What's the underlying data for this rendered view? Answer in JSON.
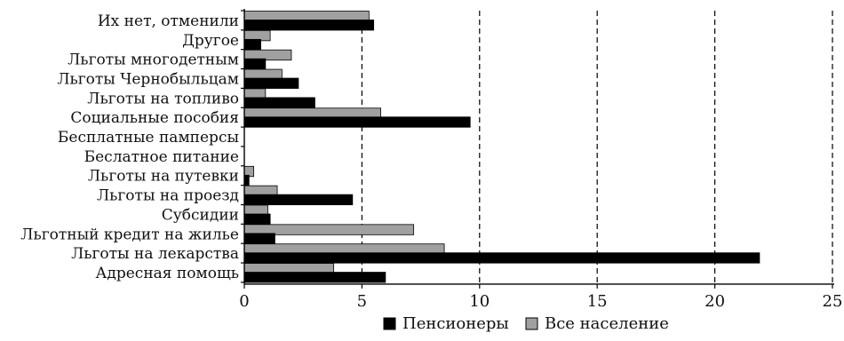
{
  "chart_data": {
    "type": "bar",
    "orientation": "horizontal",
    "categories": [
      "Их нет, отменили",
      "Другое",
      "Льготы многодетным",
      "Льготы Чернобыльцам",
      "Льготы на топливо",
      "Социальные пособия",
      "Бесплатные памперсы",
      "Беслатное питание",
      "Льготы на путевки",
      "Льготы на проезд",
      "Субсидии",
      "Льготный кредит на жилье",
      "Льготы на лекарства",
      "Адресная помощь"
    ],
    "series": [
      {
        "name": "Все население",
        "color": "#a0a0a0",
        "values": [
          5.3,
          1.1,
          2.0,
          1.6,
          0.9,
          5.8,
          0,
          0,
          0.4,
          1.4,
          1.0,
          7.2,
          8.5,
          3.8
        ]
      },
      {
        "name": "Пенсионеры",
        "color": "#000000",
        "values": [
          5.5,
          0.7,
          0.9,
          2.3,
          3.0,
          9.6,
          0,
          0,
          0.2,
          4.6,
          1.1,
          1.3,
          21.9,
          6.0
        ]
      }
    ],
    "xlim": [
      0,
      25
    ],
    "xticks": [
      "0",
      "5",
      "10",
      "15",
      "20",
      "25"
    ],
    "gridlines": "dashed-vertical",
    "legend": "bottom"
  }
}
